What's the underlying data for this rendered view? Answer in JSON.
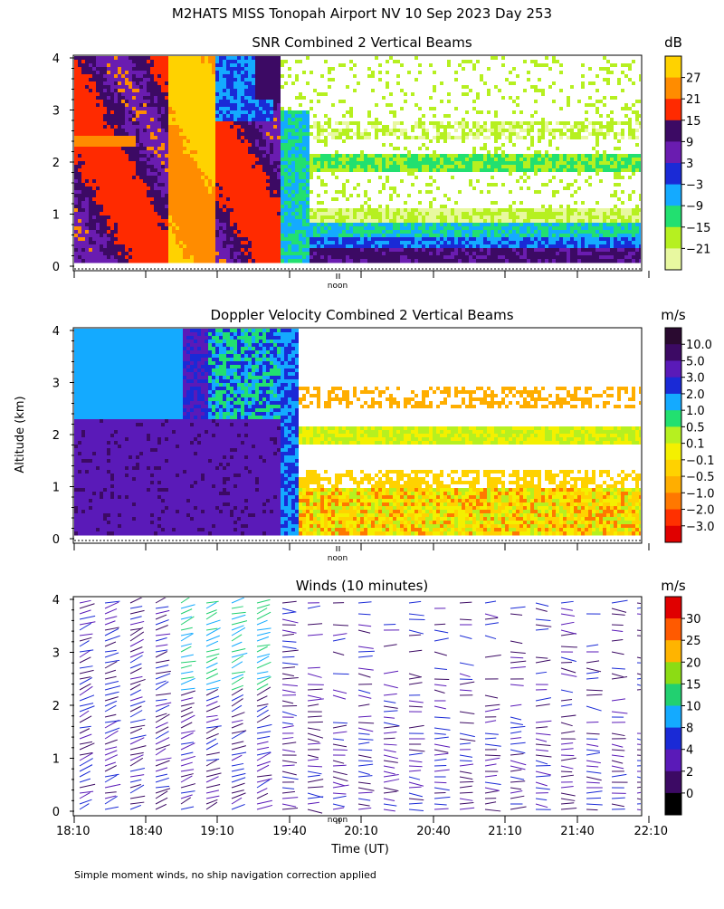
{
  "title": "M2HATS MISS Tonopah Airport NV  10 Sep 2023 Day 253",
  "ylabel": "Altitude (km)",
  "xlabel": "Time (UT)",
  "noon_label": "noon",
  "footnote": "Simple moment winds, no ship navigation correction applied",
  "chart_data": [
    {
      "type": "heatmap",
      "title": "SNR Combined 2 Vertical Beams",
      "unit": "dB",
      "ylim": [
        0,
        4
      ],
      "yticks": [
        "0",
        "1",
        "2",
        "3",
        "4"
      ],
      "colorbar": {
        "labels": [
          "27",
          "21",
          "15",
          "9",
          "3",
          "−3",
          "−9",
          "−15",
          "−21"
        ],
        "colors": [
          "#ffd200",
          "#ff8c00",
          "#ff2a00",
          "#3c0a64",
          "#6a1cb0",
          "#1a2ad6",
          "#14aaff",
          "#22e070",
          "#b6f020",
          "#e8f8a0"
        ]
      }
    },
    {
      "type": "heatmap",
      "title": "Doppler Velocity Combined 2 Vertical Beams",
      "unit": "m/s",
      "ylim": [
        0,
        4
      ],
      "yticks": [
        "0",
        "1",
        "2",
        "3",
        "4"
      ],
      "colorbar": {
        "labels": [
          "10.0",
          "5.0",
          "3.0",
          "2.0",
          "1.0",
          "0.5",
          "0.1",
          "−0.1",
          "−0.5",
          "−1.0",
          "−2.0",
          "−3.0"
        ],
        "colors": [
          "#2a0a30",
          "#3c0a64",
          "#5a1ab8",
          "#1a2ad6",
          "#14aaff",
          "#22e070",
          "#b6f020",
          "#f4f000",
          "#ffd200",
          "#ffae00",
          "#ff7800",
          "#ff3000",
          "#e00000"
        ]
      }
    },
    {
      "type": "wind_barbs",
      "title": "Winds (10 minutes)",
      "unit": "m/s",
      "ylim": [
        0,
        4
      ],
      "yticks": [
        "0",
        "1",
        "2",
        "3",
        "4"
      ],
      "xticks": [
        "18:10",
        "18:40",
        "19:10",
        "19:40",
        "20:10",
        "20:40",
        "21:10",
        "21:40",
        "22:10"
      ],
      "colorbar": {
        "labels": [
          "30",
          "25",
          "20",
          "15",
          "10",
          "8",
          "4",
          "2",
          "0"
        ],
        "colors": [
          "#e00000",
          "#ff5a00",
          "#ffb400",
          "#8cdc14",
          "#22d070",
          "#14aaff",
          "#1a2ad6",
          "#5a1ab8",
          "#3c0a64",
          "#000000"
        ]
      }
    }
  ]
}
